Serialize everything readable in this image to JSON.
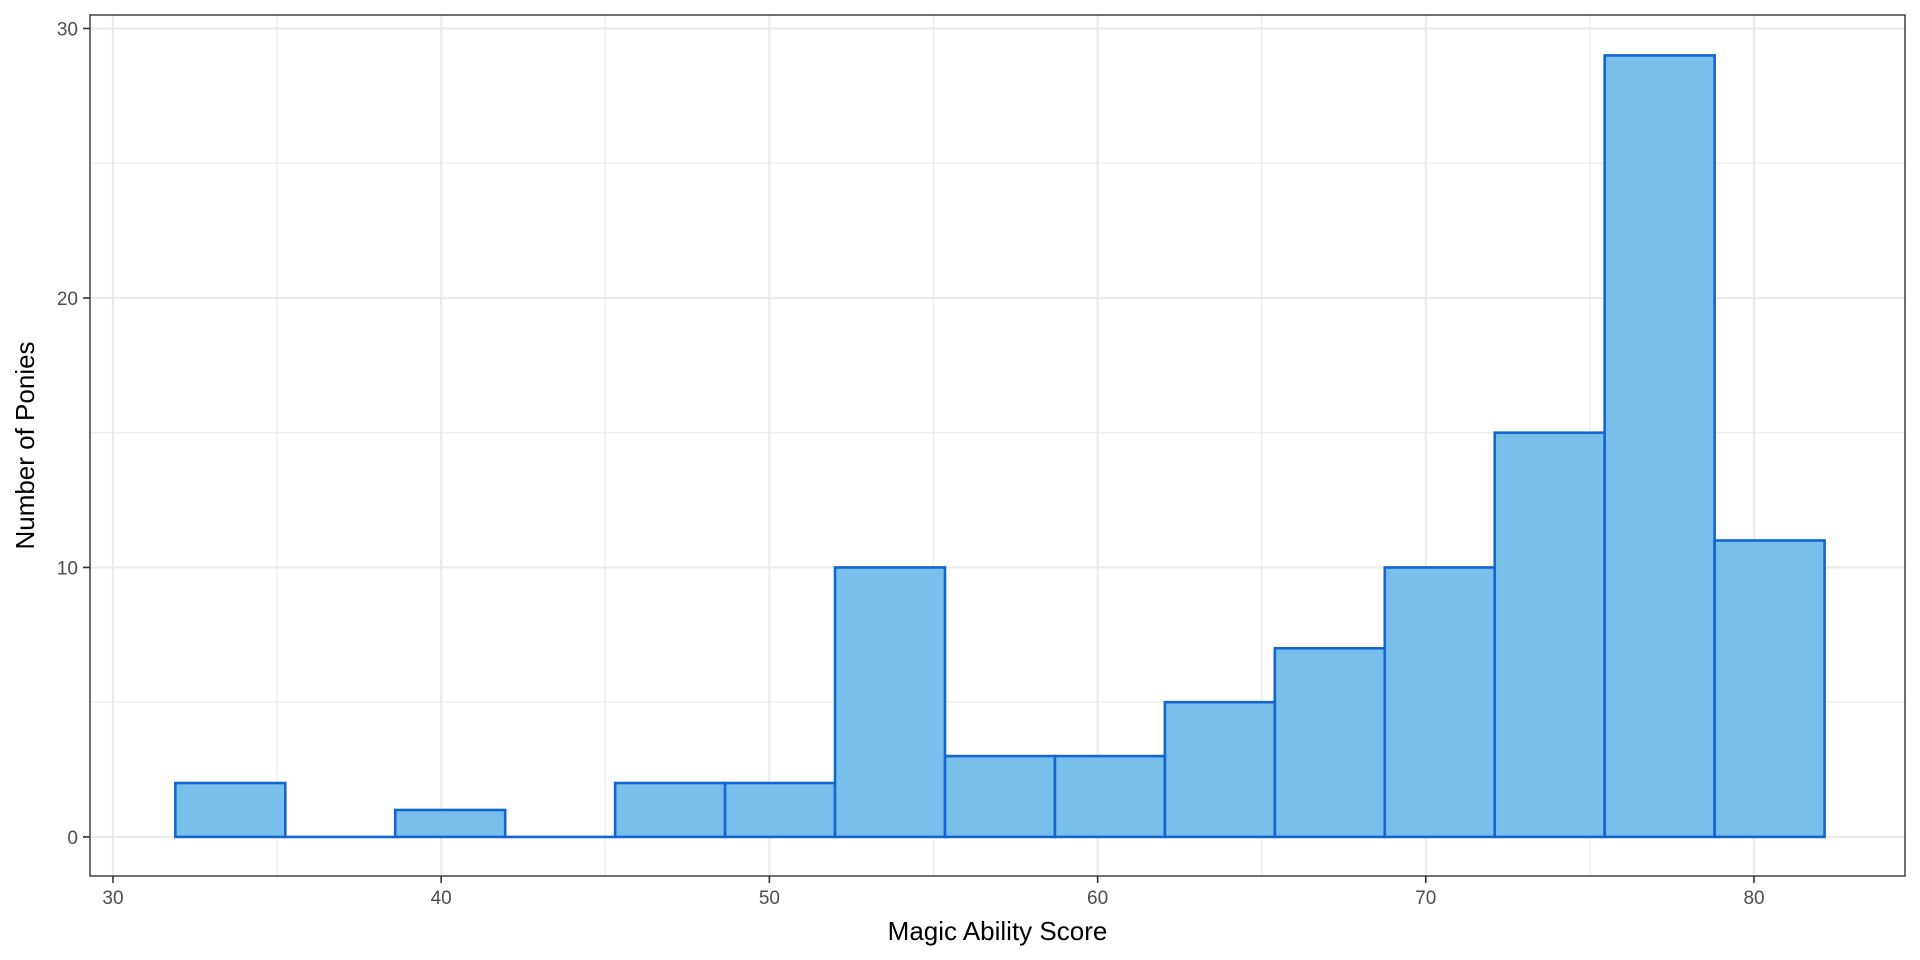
{
  "chart_data": {
    "type": "bar",
    "subtype": "histogram",
    "xlabel": "Magic Ability Score",
    "ylabel": "Number of Ponies",
    "xlim": [
      29.3,
      84.6
    ],
    "ylim": [
      -1.45,
      30.5
    ],
    "x_ticks": [
      30,
      40,
      50,
      60,
      70,
      80
    ],
    "y_ticks": [
      0,
      10,
      20,
      30
    ],
    "grid": true,
    "bins": [
      {
        "x0": 31.9,
        "x1": 35.25,
        "count": 2
      },
      {
        "x0": 35.25,
        "x1": 38.6,
        "count": 0
      },
      {
        "x0": 38.6,
        "x1": 41.95,
        "count": 1
      },
      {
        "x0": 41.95,
        "x1": 45.3,
        "count": 0
      },
      {
        "x0": 45.3,
        "x1": 48.65,
        "count": 2
      },
      {
        "x0": 48.65,
        "x1": 52.0,
        "count": 2
      },
      {
        "x0": 52.0,
        "x1": 55.35,
        "count": 10
      },
      {
        "x0": 55.35,
        "x1": 58.7,
        "count": 3
      },
      {
        "x0": 58.7,
        "x1": 62.05,
        "count": 3
      },
      {
        "x0": 62.05,
        "x1": 65.4,
        "count": 5
      },
      {
        "x0": 65.4,
        "x1": 68.75,
        "count": 7
      },
      {
        "x0": 68.75,
        "x1": 72.1,
        "count": 10
      },
      {
        "x0": 72.1,
        "x1": 75.45,
        "count": 15
      },
      {
        "x0": 75.45,
        "x1": 78.8,
        "count": 29
      },
      {
        "x0": 78.8,
        "x1": 82.15,
        "count": 11
      }
    ],
    "colors": {
      "fill": "#79BFEC",
      "stroke": "#1565D0",
      "grid": "#EBEBEB",
      "panel_border": "#333333"
    }
  }
}
